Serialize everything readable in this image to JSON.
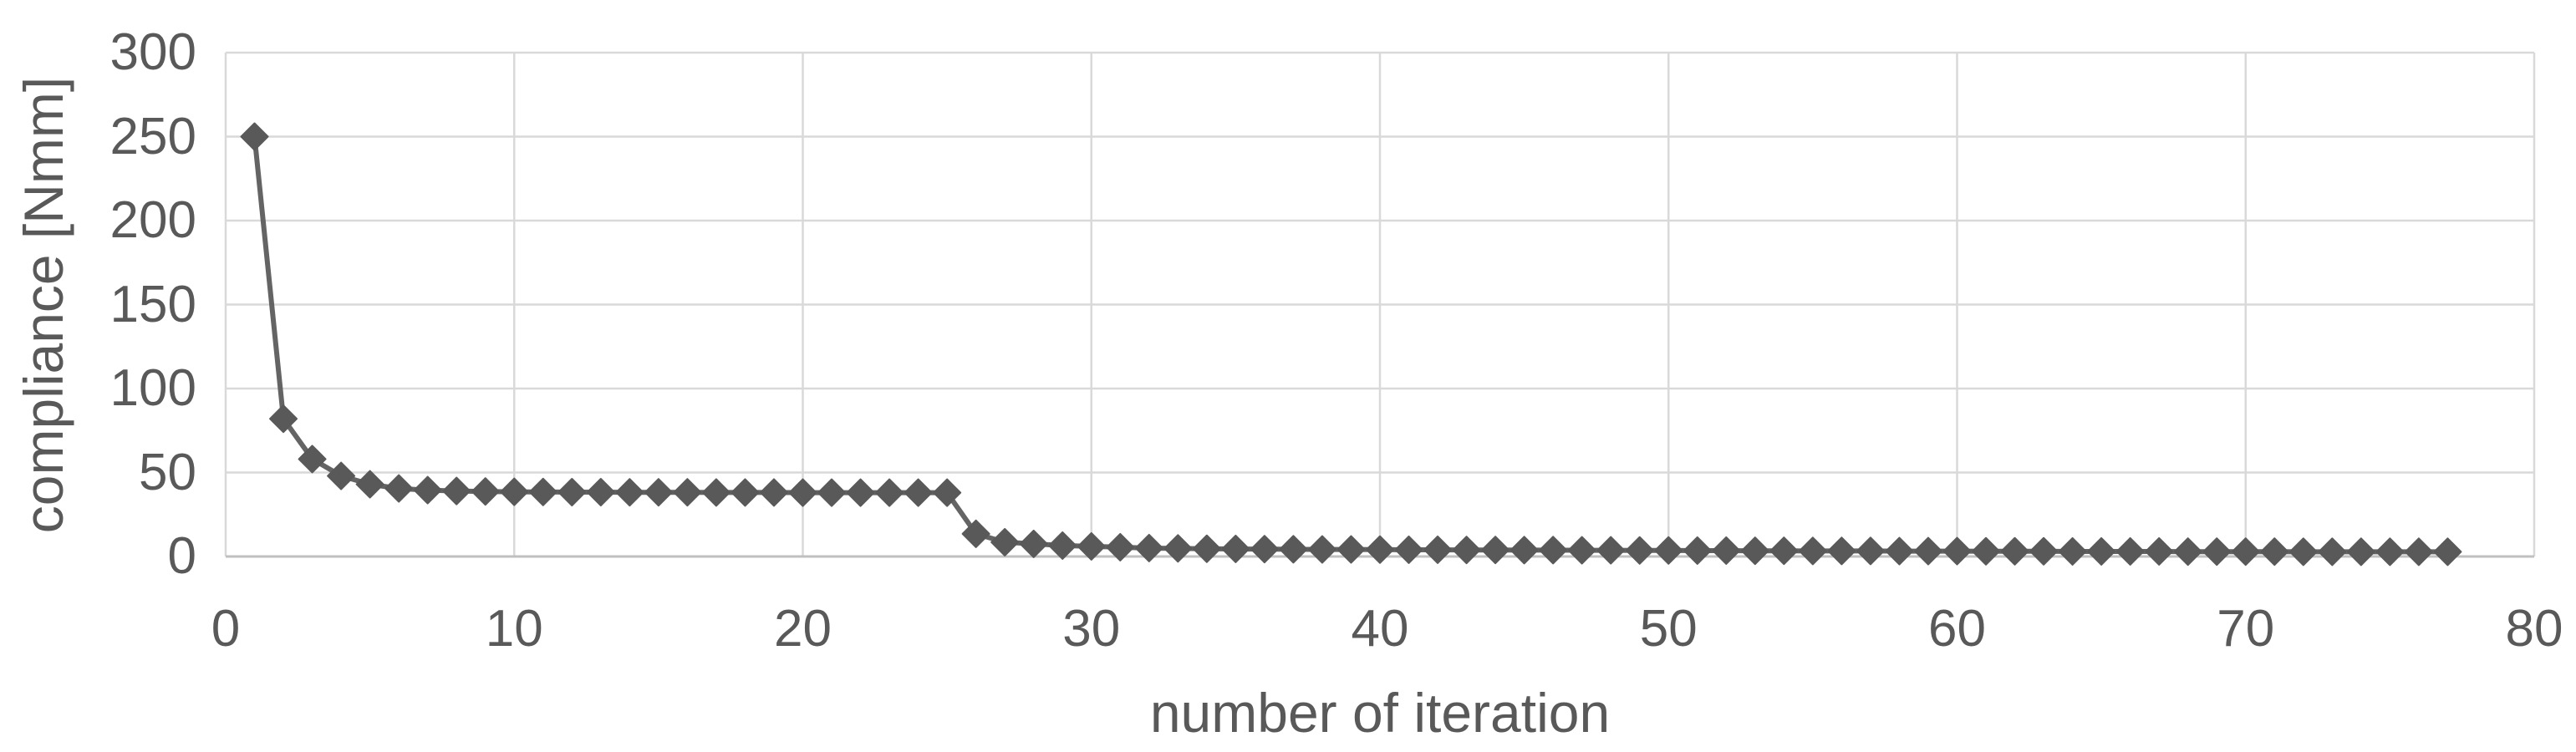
{
  "chart_data": {
    "type": "line",
    "title": "",
    "xlabel": "number of iteration",
    "ylabel": "compliance [Nmm]",
    "xlim": [
      0,
      80
    ],
    "ylim": [
      0,
      300
    ],
    "x_ticks": [
      0,
      10,
      20,
      30,
      40,
      50,
      60,
      70,
      80
    ],
    "y_ticks": [
      0,
      50,
      100,
      150,
      200,
      250,
      300
    ],
    "grid": "both",
    "legend_position": "none",
    "series": [
      {
        "name": "compliance",
        "marker": "diamond",
        "x": [
          1,
          2,
          3,
          4,
          5,
          6,
          7,
          8,
          9,
          10,
          11,
          12,
          13,
          14,
          15,
          16,
          17,
          18,
          19,
          20,
          21,
          22,
          23,
          24,
          25,
          26,
          27,
          28,
          29,
          30,
          31,
          32,
          33,
          34,
          35,
          36,
          37,
          38,
          39,
          40,
          41,
          42,
          43,
          44,
          45,
          46,
          47,
          48,
          49,
          50,
          51,
          52,
          53,
          54,
          55,
          56,
          57,
          58,
          59,
          60,
          61,
          62,
          63,
          64,
          65,
          66,
          67,
          68,
          69,
          70,
          71,
          72,
          73,
          74,
          75,
          76,
          77
        ],
        "values": [
          250,
          82,
          58,
          48,
          43,
          40.5,
          39.5,
          39,
          38.7,
          38.5,
          38.4,
          38.3,
          38.3,
          38.2,
          38.2,
          38.2,
          38.1,
          38.1,
          38.1,
          38,
          38,
          38,
          38,
          38,
          38,
          13.5,
          8.5,
          7.5,
          6.5,
          6,
          5.5,
          5,
          4.8,
          4.6,
          4.5,
          4.4,
          4.3,
          4.2,
          4.2,
          4.1,
          4,
          4,
          3.9,
          3.9,
          3.8,
          3.8,
          3.7,
          3.7,
          3.6,
          3.6,
          3.5,
          3.5,
          3.4,
          3.4,
          3.3,
          3.3,
          3.3,
          3.2,
          3.2,
          3.2,
          3.1,
          3.1,
          3.1,
          3,
          3,
          3,
          3,
          2.9,
          2.9,
          2.9,
          2.9,
          2.8,
          2.8,
          2.8,
          2.8,
          2.8,
          2.8
        ]
      }
    ]
  },
  "colors": {
    "background": "#ffffff",
    "series": "#595959",
    "series_line": "#646464",
    "gridline": "#d9d9d9",
    "plot_border": "#d9d9d9",
    "axis_line": "#c0c0c0",
    "text": "#595959"
  }
}
